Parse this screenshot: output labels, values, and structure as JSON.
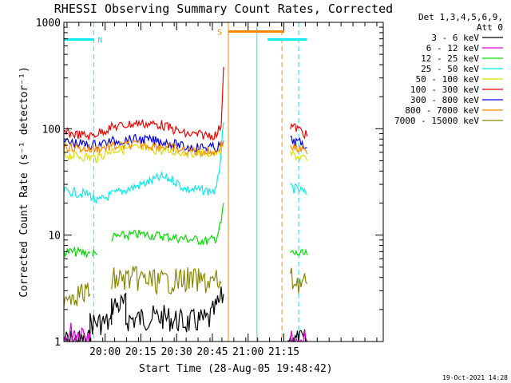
{
  "chart_data": {
    "type": "line",
    "title": "RHESSI Observing Summary Count Rates, Corrected",
    "ylabel": "Corrected Count Rate (s⁻¹ detector⁻¹)",
    "xlabel": "Start Time (28-Aug-05 19:48:42)",
    "y_scale": "log",
    "ylim": [
      1,
      1000
    ],
    "y_ticks": [
      {
        "value": 1,
        "label": "1"
      },
      {
        "value": 10,
        "label": "10"
      },
      {
        "value": 100,
        "label": "100"
      },
      {
        "value": 1000,
        "label": "1000"
      }
    ],
    "xlim_min": [
      -6,
      128
    ],
    "x_ticks": [
      {
        "value": 11.3,
        "label": "20:00"
      },
      {
        "value": 26.3,
        "label": "20:15"
      },
      {
        "value": 41.3,
        "label": "20:30"
      },
      {
        "value": 56.3,
        "label": "20:45"
      },
      {
        "value": 71.3,
        "label": "21:00"
      },
      {
        "value": 86.3,
        "label": "21:15"
      }
    ],
    "legend": {
      "header": [
        "Det 1,3,4,5,6,9,",
        "Att 0"
      ],
      "position": "right"
    },
    "footer_timestamp": "19-Oct-2021 14:28",
    "flag_labels": {
      "N": "N",
      "S": "S"
    },
    "series": [
      {
        "name": "3 - 6 keV",
        "color": "#000000",
        "segments": [
          [
            [
              -6,
              1
            ],
            [
              5,
              1
            ],
            [
              5,
              1.5
            ],
            [
              14,
              1.5
            ],
            [
              14,
              2.2
            ],
            [
              20,
              2.2
            ],
            [
              20,
              1.6
            ],
            [
              35,
              1.7
            ],
            [
              45,
              1.5
            ],
            [
              55,
              1.6
            ],
            [
              60,
              2.5
            ],
            [
              61,
              2.8
            ]
          ],
          [
            [
              88,
              1
            ],
            [
              96,
              1
            ]
          ]
        ]
      },
      {
        "name": "6 - 12 keV",
        "color": "#e000e0",
        "segments": [
          [
            [
              -6,
              1
            ],
            [
              -2,
              1.3
            ],
            [
              0,
              1.2
            ],
            [
              2,
              1.3
            ],
            [
              5,
              1.2
            ]
          ],
          [
            [
              88,
              1
            ],
            [
              96,
              1
            ]
          ]
        ]
      },
      {
        "name": "12 - 25 keV",
        "color": "#00dd00",
        "segments": [
          [
            [
              -6,
              7
            ],
            [
              5,
              6.8
            ]
          ],
          [
            [
              6,
              6.8
            ],
            [
              8,
              6.5
            ]
          ],
          [
            [
              14,
              9.5
            ],
            [
              25,
              10.2
            ],
            [
              35,
              9.8
            ],
            [
              45,
              9.2
            ],
            [
              55,
              8.8
            ],
            [
              58,
              9.5
            ],
            [
              60,
              13
            ],
            [
              61,
              20
            ]
          ],
          [
            [
              89,
              6.8
            ],
            [
              96,
              6.5
            ]
          ]
        ]
      },
      {
        "name": "25 - 50 keV",
        "color": "#00eeee",
        "segments": [
          [
            [
              -6,
              26
            ],
            [
              5,
              24
            ],
            [
              8,
              20.5
            ],
            [
              14,
              24
            ],
            [
              25,
              29
            ],
            [
              35,
              35
            ],
            [
              40,
              33
            ],
            [
              45,
              27
            ],
            [
              55,
              26
            ],
            [
              58,
              26
            ],
            [
              60,
              60
            ],
            [
              61,
              115
            ]
          ],
          [
            [
              89,
              28
            ],
            [
              94,
              26
            ],
            [
              96,
              24
            ]
          ]
        ]
      },
      {
        "name": "50 - 100 keV",
        "color": "#dddd00",
        "segments": [
          [
            [
              -6,
              57
            ],
            [
              5,
              54
            ],
            [
              8,
              53
            ],
            [
              14,
              63
            ],
            [
              25,
              66
            ],
            [
              35,
              62
            ],
            [
              45,
              60
            ],
            [
              55,
              59
            ],
            [
              58,
              59
            ],
            [
              60,
              62
            ],
            [
              61,
              68
            ]
          ],
          [
            [
              89,
              58
            ],
            [
              94,
              53
            ],
            [
              96,
              50
            ]
          ]
        ]
      },
      {
        "name": "100 - 300 keV",
        "color": "#ee0000",
        "segments": [
          [
            [
              -6,
              92
            ],
            [
              5,
              85
            ],
            [
              14,
              103
            ],
            [
              25,
              113
            ],
            [
              35,
              109
            ],
            [
              40,
              98
            ],
            [
              45,
              89
            ],
            [
              55,
              87
            ],
            [
              58,
              87
            ],
            [
              60,
              110
            ],
            [
              61,
              380
            ]
          ],
          [
            [
              89,
              108
            ],
            [
              94,
              95
            ],
            [
              96,
              85
            ]
          ]
        ]
      },
      {
        "name": "300 - 800 keV",
        "color": "#0000ee",
        "segments": [
          [
            [
              -6,
              76
            ],
            [
              5,
              70
            ],
            [
              14,
              76
            ],
            [
              25,
              80
            ],
            [
              35,
              76
            ],
            [
              40,
              72
            ],
            [
              45,
              67
            ],
            [
              55,
              67
            ],
            [
              58,
              66
            ],
            [
              60,
              70
            ],
            [
              61,
              76
            ]
          ],
          [
            [
              89,
              78
            ],
            [
              94,
              72
            ],
            [
              96,
              66
            ]
          ]
        ]
      },
      {
        "name": "800 - 7000 keV",
        "color": "#ff8800",
        "segments": [
          [
            [
              -6,
              68
            ],
            [
              5,
              64
            ],
            [
              14,
              68
            ],
            [
              25,
              71
            ],
            [
              35,
              69
            ],
            [
              45,
              62
            ],
            [
              55,
              61
            ],
            [
              58,
              61
            ],
            [
              60,
              70
            ],
            [
              61,
              78
            ]
          ],
          [
            [
              89,
              68
            ],
            [
              94,
              62
            ],
            [
              96,
              58
            ]
          ]
        ]
      },
      {
        "name": "7000 - 15000 keV",
        "color": "#888800",
        "segments": [
          [
            [
              -6,
              2.8
            ],
            [
              5,
              2.8
            ]
          ],
          [
            [
              14,
              3.8
            ],
            [
              25,
              3.9
            ],
            [
              35,
              3.6
            ],
            [
              45,
              3.8
            ],
            [
              55,
              3.6
            ],
            [
              58,
              3.7
            ],
            [
              60,
              3.5
            ]
          ],
          [
            [
              89,
              3.8
            ],
            [
              96,
              3.5
            ]
          ]
        ]
      }
    ],
    "flag_bars": [
      {
        "label": "N",
        "color": "#00eeee",
        "y": 690,
        "x0": -6,
        "x1": 6.5
      },
      {
        "label": "",
        "color": "#00eeee",
        "y": 690,
        "x0": 79.5,
        "x1": 96
      },
      {
        "label": "S",
        "color": "#ff8800",
        "y": 820,
        "x0": 63,
        "x1": 86.5
      }
    ],
    "vertical_lines": [
      {
        "x": 6.5,
        "color": "#00eeee",
        "style": "dashed"
      },
      {
        "x": 63,
        "color": "#ff8800",
        "style": "solid"
      },
      {
        "x": 75,
        "color": "#00eeee",
        "style": "solid"
      },
      {
        "x": 85.5,
        "color": "#ff8800",
        "style": "dashed"
      },
      {
        "x": 92.5,
        "color": "#00eeee",
        "style": "dashed"
      }
    ]
  }
}
